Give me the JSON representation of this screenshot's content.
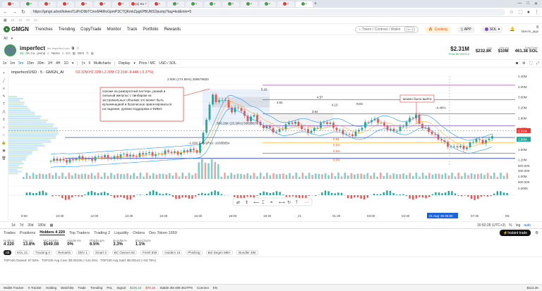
{
  "browser": {
    "tabs": [
      {
        "color": "#e53935",
        "label": ""
      },
      {
        "color": "#43a047",
        "label": ""
      },
      {
        "color": "#e53935",
        "label": ""
      },
      {
        "color": "#e53935",
        "label": ""
      },
      {
        "color": "#e53935",
        "label": ""
      },
      {
        "color": "#e53935",
        "label": ""
      },
      {
        "color": "#e53935",
        "label": ""
      },
      {
        "color": "#e53935",
        "label": "(1) Ko"
      },
      {
        "color": "#e53935",
        "label": ""
      },
      {
        "color": "#43a047",
        "label": ""
      },
      {
        "color": "#43a047",
        "label": ""
      },
      {
        "color": "#43a047",
        "label": ""
      },
      {
        "color": "#43a047",
        "label": ""
      },
      {
        "color": "#43a047",
        "label": ""
      },
      {
        "color": "#43a047",
        "label": ""
      },
      {
        "color": "#e53935",
        "label": ""
      },
      {
        "color": "#43a047",
        "label": ""
      }
    ],
    "url": "https://gmgn.ai/sol/token/CuPnD9bTCmxM4tRoGpmP3CTQKmkZpgEPBUM1Dpump?tag=kol&min=5",
    "window_controls": [
      "—",
      "□",
      "✕"
    ]
  },
  "app": {
    "logo": "GMGN",
    "nav": [
      "Trenches",
      "Trending",
      "CopyTrade",
      "Monitor",
      "Track",
      "Portfolio",
      "Rewards"
    ],
    "search_placeholder": "Token / Contract / Wallet",
    "search_kbd": "Ctrl+K",
    "cooking": "Cooking",
    "app_label": "APP",
    "chain": "SOL",
    "wallet_balance": "0",
    "wallet_name": "Marvin_jags",
    "filter_all": "All"
  },
  "token": {
    "name": "imperfect",
    "fullname": "the imperfect coin",
    "age": "3d",
    "contract": "CK Cu...pump",
    "link_name": "Name",
    "link_ca": "CA",
    "link_dex": "DEX",
    "price": "$2.31M",
    "price_sub": "Price $0.002312",
    "liq_label": "Liq",
    "liq": "$232.8K",
    "vol_label": "24h Vol",
    "vol": "$10M",
    "fees_label": "Total Fees",
    "fees": "461.38 SOL"
  },
  "toolbar": {
    "timeframes": [
      "1s",
      "1m",
      "5m",
      "15m",
      "30m",
      "1H",
      "4H",
      "1D"
    ],
    "active_tf": "5m",
    "multicharts": "Multicharts",
    "display": "Display",
    "price_mc": "Price / MC",
    "usd_sol": "USD / SOL"
  },
  "chart": {
    "title": "Imperfect/USD · 5 · GMGN_AI",
    "ohlc": "O2.32M H2.32M L2.30M C2.31M -8.44K (-0.37%)",
    "annotation_ru": "похоже на разворотный паттерн, резкий и сильный импульс с пинбаром на экстремальных объемах это может быть кульминацией и безопасное ориентироваться на падение, уровни поддержки и ФИБО",
    "annotation2_ru": "можно было выйти",
    "label_top": "2.50K (174.65%) 258679820",
    "label_mid": "300.26K (15.39%) 50026679",
    "label_low": "-1.63K (-46.97%) -1638585n",
    "label_pct": "-4.49%",
    "fib_labels": [
      "5.16",
      "4.57",
      "4.91",
      "3.54",
      "4.13",
      "-9.03",
      "0.53",
      "0.5%",
      "0.5%",
      "0.0%"
    ],
    "y_ticks": [
      "4.40M",
      "4.00M",
      "3.60M",
      "3.20M",
      "2.80M",
      "2.40M",
      "1.60M",
      "1.20M",
      "800.00K",
      "400.00K",
      "1.00M",
      "600.00K",
      "0.000K"
    ],
    "price_tags": [
      "2.31M",
      "1.98M"
    ],
    "x_ticks": [
      "9:00",
      "10:30",
      "12:00",
      "13:30",
      "15:00",
      "16:30",
      "18:00",
      "19:30",
      "21",
      "01:30",
      "03:00",
      "04:30",
      "06:00",
      "07:30",
      "09:"
    ],
    "x_highlight": "21 Aug '25  05:00",
    "time": "16:50:28 (UTC+3)",
    "time_mode": [
      "%",
      "log",
      "auto"
    ]
  },
  "periods": [
    "1d",
    "7d",
    "30d",
    "180d"
  ],
  "bottom_tabs": [
    "Trades",
    "Positions",
    "Holders 4 220",
    "Top Traders",
    "Trading 2",
    "Liquidity",
    "Orders",
    "Dev Token 1659"
  ],
  "bottom_active": "Holders 4 220",
  "instant_trade": "Instant trade",
  "holders": [
    {
      "label": "Holders",
      "value": "4 220"
    },
    {
      "label": "Top 10",
      "value": "13.8%"
    },
    {
      "label": "MC/Holder",
      "value": "$549.08"
    },
    {
      "label": "Insiders%",
      "value": "0%"
    },
    {
      "label": "Phishing%",
      "value": "6.5%"
    },
    {
      "label": "Bundler%",
      "value": "3.3%"
    },
    {
      "label": "BlueChip%",
      "value": "1.1%"
    }
  ],
  "chips": [
    "All",
    "KOL 21",
    "Tracking 0",
    "Remarks",
    "DEV 1",
    "Smart 3",
    "BC Owners 82",
    "Fresh 839",
    "Insiders 16",
    "Phishing",
    "Bot Degen 988+",
    "Bundler 480"
  ],
  "status": "TOP100 Owned: 87.82% · TOP100 Avg Cost: $0.00105 (+121.9%) · TOP100 Avg Sold: $0.00142 (+63.78%)",
  "taskbar": {
    "items": [
      "Wallet Tracker",
      "X Tracker",
      "Holding",
      "Watchlist",
      "Trade",
      "Trending",
      "PnL",
      "Signal",
      "$185.24",
      "$76.1K",
      "Stable  3M 489  361TPS",
      "Connect",
      "EN"
    ],
    "btc": "$113.2K"
  }
}
